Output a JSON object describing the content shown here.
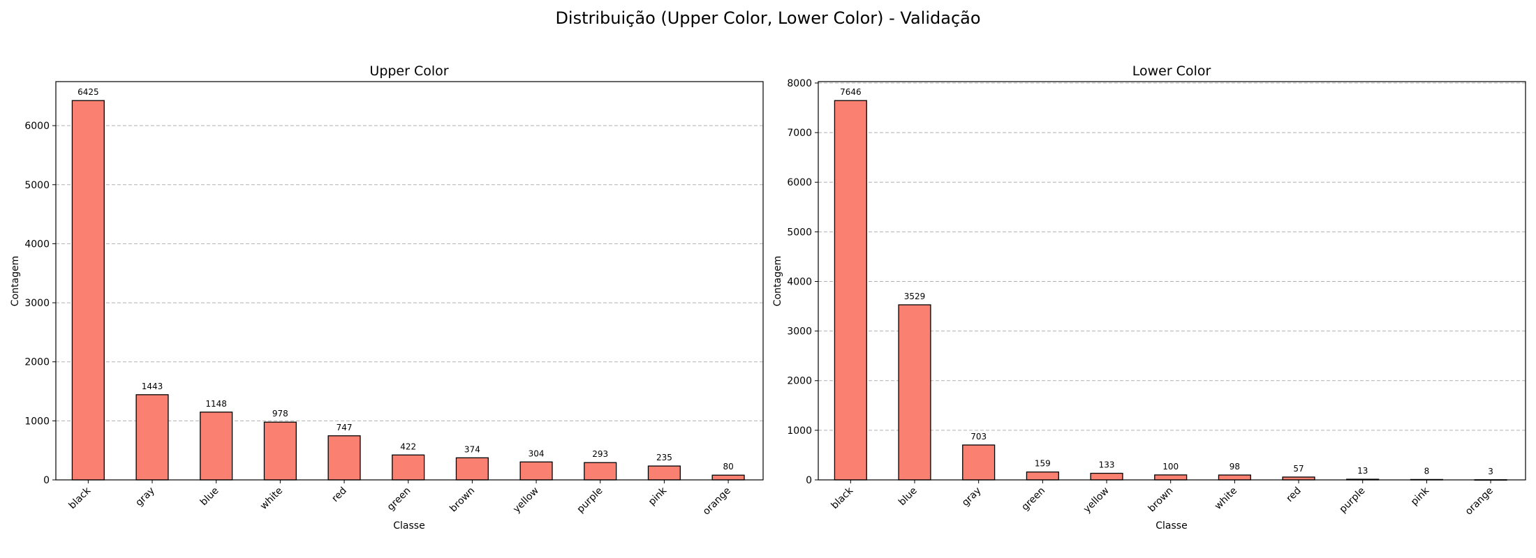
{
  "suptitle": "Distribuição (Upper Color, Lower Color) - Validação",
  "bar_color": "#fa8072",
  "chart_data": [
    {
      "type": "bar",
      "title": "Upper Color",
      "xlabel": "Classe",
      "ylabel": "Contagem",
      "ylim": [
        0,
        6746
      ],
      "yticks": [
        0,
        1000,
        2000,
        3000,
        4000,
        5000,
        6000
      ],
      "grid": "y-dashed",
      "categories": [
        "black",
        "gray",
        "blue",
        "white",
        "red",
        "green",
        "brown",
        "yellow",
        "purple",
        "pink",
        "orange"
      ],
      "values": [
        6425,
        1443,
        1148,
        978,
        747,
        422,
        374,
        304,
        293,
        235,
        80
      ]
    },
    {
      "type": "bar",
      "title": "Lower Color",
      "xlabel": "Classe",
      "ylabel": "Contagem",
      "ylim": [
        0,
        8028
      ],
      "yticks": [
        0,
        1000,
        2000,
        3000,
        4000,
        5000,
        6000,
        7000,
        8000
      ],
      "grid": "y-dashed",
      "categories": [
        "black",
        "blue",
        "gray",
        "green",
        "yellow",
        "brown",
        "white",
        "red",
        "purple",
        "pink",
        "orange"
      ],
      "values": [
        7646,
        3529,
        703,
        159,
        133,
        100,
        98,
        57,
        13,
        8,
        3
      ]
    }
  ]
}
